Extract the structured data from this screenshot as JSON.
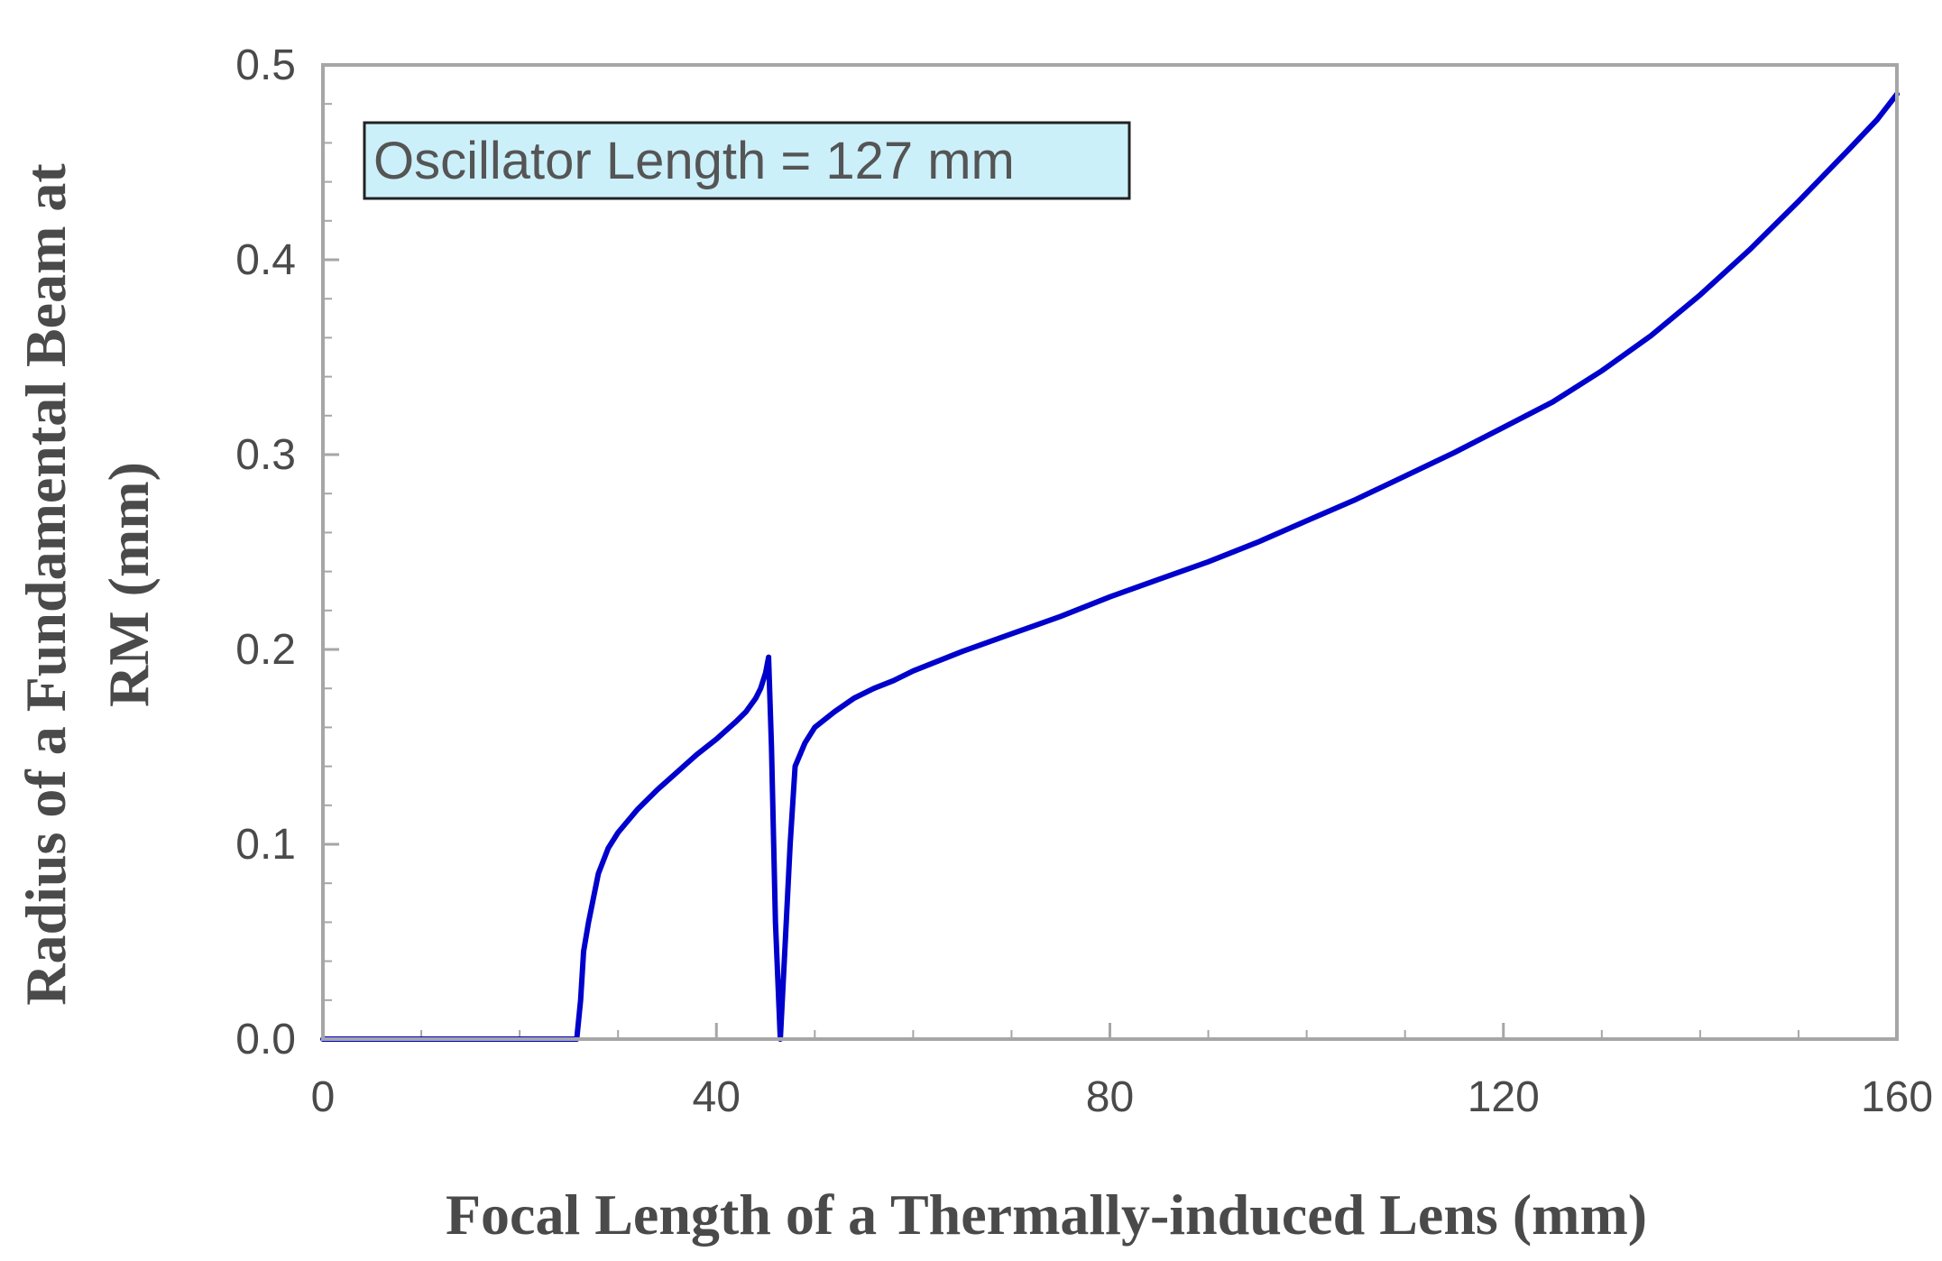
{
  "chart_data": {
    "type": "line",
    "title": "",
    "xlabel": "Focal Length of a Thermally-induced Lens (mm)",
    "ylabel_lines": [
      "Radius of a Fundamental Beam at",
      "RM (mm)"
    ],
    "xlim": [
      0,
      160
    ],
    "ylim": [
      0,
      0.5
    ],
    "x_ticks": [
      0,
      40,
      80,
      120,
      160
    ],
    "x_tick_labels": [
      "0",
      "40",
      "80",
      "120",
      "160"
    ],
    "y_ticks": [
      0,
      0.1,
      0.2,
      0.3,
      0.4,
      0.5
    ],
    "y_tick_labels": [
      "0.0",
      "0.1",
      "0.2",
      "0.3",
      "0.4",
      "0.5"
    ],
    "grid": false,
    "annotation": "Oscillator Length = 127 mm",
    "colors": {
      "line": "#0000cc",
      "axes": "#a6a6a6",
      "annotation_fill": "#ccf0fa",
      "annotation_border": "#222222",
      "text": "#4a4a4a"
    },
    "series": [
      {
        "x": [
          0,
          25.8,
          26.2,
          26.5,
          27,
          28,
          29,
          30,
          32,
          34,
          36,
          38,
          40,
          42,
          43,
          44,
          44.5,
          45,
          45.3,
          45.6,
          46,
          46.5,
          47,
          47.5,
          48,
          49,
          50,
          52,
          54,
          56,
          58,
          60,
          65,
          70,
          75,
          80,
          85,
          90,
          95,
          100,
          105,
          110,
          115,
          120,
          125,
          130,
          135,
          140,
          145,
          150,
          155,
          158,
          160
        ],
        "y": [
          0,
          0,
          0.02,
          0.045,
          0.06,
          0.085,
          0.098,
          0.106,
          0.118,
          0.128,
          0.137,
          0.146,
          0.154,
          0.163,
          0.168,
          0.175,
          0.18,
          0.188,
          0.196,
          0.15,
          0.06,
          0,
          0.05,
          0.1,
          0.14,
          0.152,
          0.16,
          0.168,
          0.175,
          0.18,
          0.184,
          0.189,
          0.199,
          0.208,
          0.217,
          0.227,
          0.236,
          0.245,
          0.255,
          0.266,
          0.277,
          0.289,
          0.301,
          0.314,
          0.327,
          0.343,
          0.361,
          0.382,
          0.405,
          0.43,
          0.456,
          0.472,
          0.485
        ]
      }
    ]
  }
}
